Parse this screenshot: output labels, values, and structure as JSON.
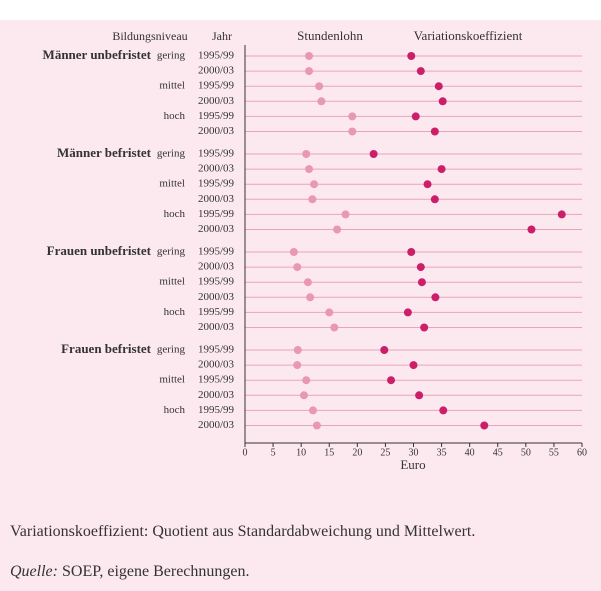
{
  "chart_data": {
    "type": "dot",
    "column_headers": [
      "Bildungsniveau",
      "Jahr"
    ],
    "groups": [
      {
        "label": "Männer unbefristet",
        "levels": [
          "gering",
          "mittel",
          "hoch"
        ]
      },
      {
        "label": "Männer befristet",
        "levels": [
          "gering",
          "mittel",
          "hoch"
        ]
      },
      {
        "label": "Frauen unbefristet",
        "levels": [
          "gering",
          "mittel",
          "hoch"
        ]
      },
      {
        "label": "Frauen befristet",
        "levels": [
          "gering",
          "mittel",
          "hoch"
        ]
      }
    ],
    "categories": [
      "1995/99",
      "2000/03",
      "1995/99",
      "2000/03",
      "1995/99",
      "2000/03",
      "1995/99",
      "2000/03",
      "1995/99",
      "2000/03",
      "1995/99",
      "2000/03",
      "1995/99",
      "2000/03",
      "1995/99",
      "2000/03",
      "1995/99",
      "2000/03",
      "1995/99",
      "2000/03",
      "1995/99",
      "2000/03",
      "1995/99",
      "2000/03"
    ],
    "series": [
      {
        "name": "Stundenlohn",
        "color": "#e897b4",
        "values": [
          11.4,
          11.4,
          13.2,
          13.6,
          19.1,
          19.1,
          10.9,
          11.4,
          12.3,
          12,
          17.9,
          16.4,
          8.7,
          9.3,
          11.2,
          11.6,
          15,
          15.9,
          9.4,
          9.3,
          10.9,
          10.5,
          12.1,
          12.8
        ]
      },
      {
        "name": "Variationskoeffizient",
        "color": "#cc1f6a",
        "values": [
          29.6,
          31.3,
          34.5,
          35.2,
          30.4,
          33.8,
          22.9,
          35,
          32.5,
          33.8,
          56.4,
          51,
          29.6,
          31.3,
          31.5,
          33.9,
          29,
          31.9,
          24.8,
          30,
          26,
          31,
          35.3,
          42.6
        ]
      }
    ],
    "xlabel": "Euro",
    "xlim": [
      0,
      60
    ],
    "xticks": [
      0,
      5,
      10,
      15,
      20,
      25,
      30,
      35,
      40,
      45,
      50,
      55,
      60
    ],
    "grid": true
  },
  "notes": {
    "definition": "Variationskoeffizient: Quotient aus Standardabweichung und Mittelwert.",
    "source_label": "Quelle:",
    "source": " SOEP, eigene Berechnungen."
  }
}
